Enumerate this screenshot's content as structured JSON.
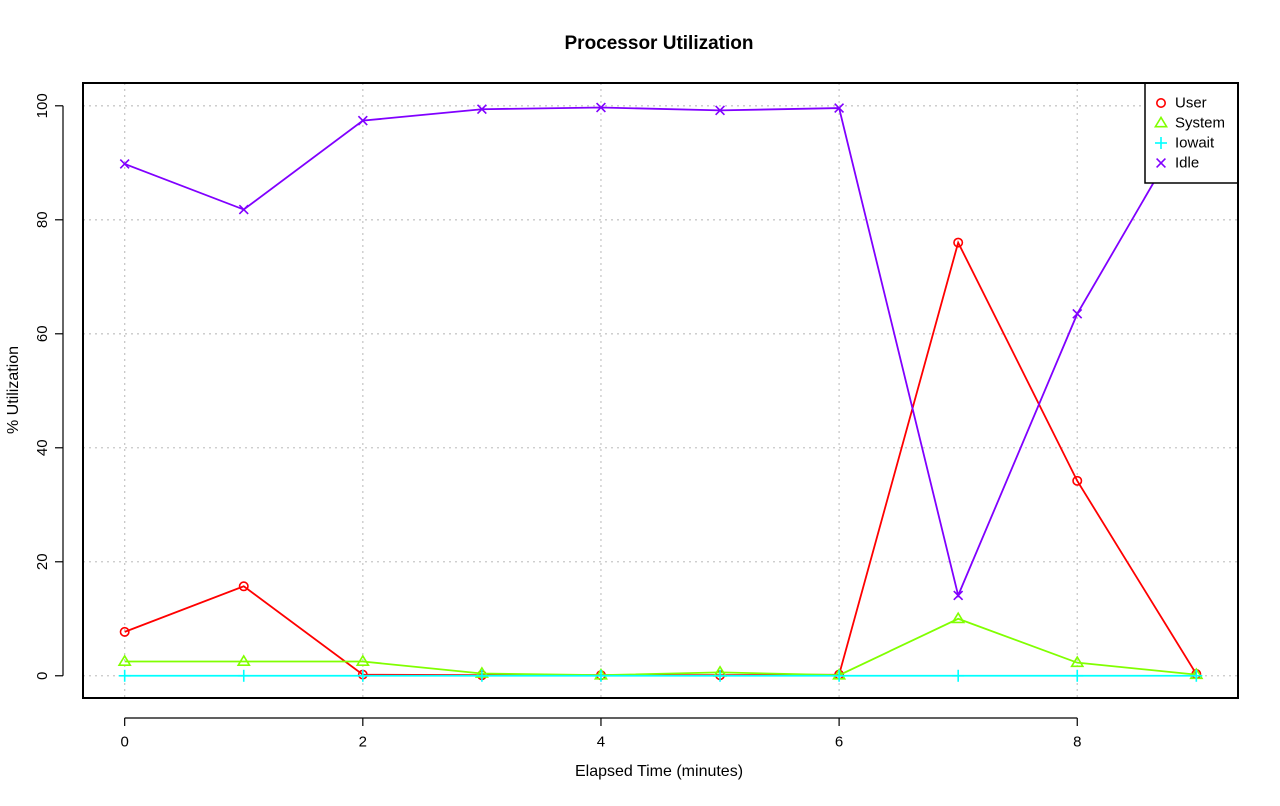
{
  "chart_data": {
    "type": "line",
    "title": "Processor Utilization",
    "xlabel": "Elapsed Time (minutes)",
    "ylabel": "% Utilization",
    "x": [
      0,
      1,
      2,
      3,
      4,
      5,
      6,
      7,
      8,
      9
    ],
    "xlim": [
      -0.35,
      9.35
    ],
    "ylim": [
      -3.9,
      104.0
    ],
    "x_ticks": [
      0,
      2,
      4,
      6,
      8
    ],
    "y_ticks": [
      0,
      20,
      40,
      60,
      80,
      100
    ],
    "grid": true,
    "legend_position": "top-right",
    "series": [
      {
        "name": "User",
        "color": "#ff0000",
        "marker": "circle",
        "values": [
          7.7,
          15.7,
          0.2,
          0.1,
          0.1,
          0.1,
          0.2,
          76.0,
          34.2,
          0.3
        ]
      },
      {
        "name": "System",
        "color": "#80ff00",
        "marker": "triangle",
        "values": [
          2.5,
          2.5,
          2.5,
          0.4,
          0.1,
          0.6,
          0.1,
          10.0,
          2.3,
          0.2
        ]
      },
      {
        "name": "Iowait",
        "color": "#00ffff",
        "marker": "plus",
        "values": [
          0,
          0,
          0,
          0,
          0,
          0,
          0,
          0,
          0,
          0
        ]
      },
      {
        "name": "Idle",
        "color": "#8000ff",
        "marker": "cross",
        "values": [
          89.8,
          81.8,
          97.4,
          99.4,
          99.7,
          99.2,
          99.6,
          14.1,
          63.5,
          99.4
        ]
      }
    ]
  }
}
